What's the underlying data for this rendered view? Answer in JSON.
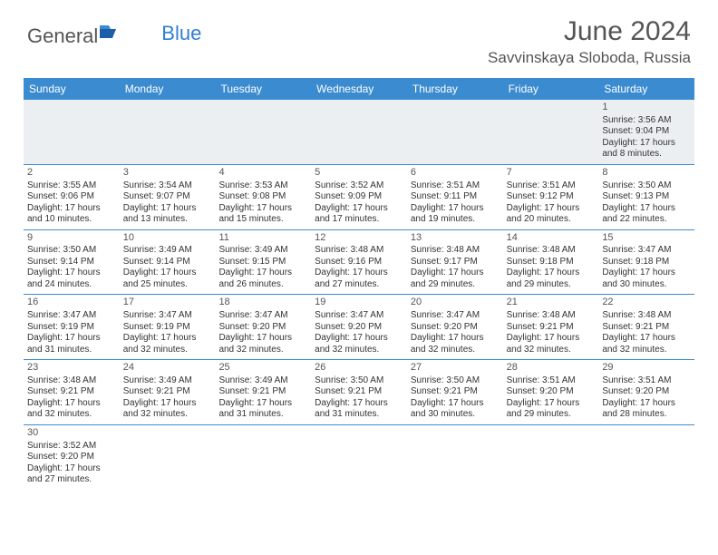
{
  "logo": {
    "part1": "General",
    "part2": "Blue"
  },
  "title": "June 2024",
  "location": "Savvinskaya Sloboda, Russia",
  "colors": {
    "header_bg": "#3b8bd0",
    "header_text": "#ffffff",
    "border": "#3b8bd0",
    "first_week_bg": "#eceff1",
    "text": "#333333",
    "title": "#555555",
    "logo_gray": "#555555",
    "logo_blue": "#2f7fd0"
  },
  "day_headers": [
    "Sunday",
    "Monday",
    "Tuesday",
    "Wednesday",
    "Thursday",
    "Friday",
    "Saturday"
  ],
  "weeks": [
    [
      null,
      null,
      null,
      null,
      null,
      null,
      {
        "n": "1",
        "sr": "3:56 AM",
        "ss": "9:04 PM",
        "dl": "17 hours and 8 minutes."
      }
    ],
    [
      {
        "n": "2",
        "sr": "3:55 AM",
        "ss": "9:06 PM",
        "dl": "17 hours and 10 minutes."
      },
      {
        "n": "3",
        "sr": "3:54 AM",
        "ss": "9:07 PM",
        "dl": "17 hours and 13 minutes."
      },
      {
        "n": "4",
        "sr": "3:53 AM",
        "ss": "9:08 PM",
        "dl": "17 hours and 15 minutes."
      },
      {
        "n": "5",
        "sr": "3:52 AM",
        "ss": "9:09 PM",
        "dl": "17 hours and 17 minutes."
      },
      {
        "n": "6",
        "sr": "3:51 AM",
        "ss": "9:11 PM",
        "dl": "17 hours and 19 minutes."
      },
      {
        "n": "7",
        "sr": "3:51 AM",
        "ss": "9:12 PM",
        "dl": "17 hours and 20 minutes."
      },
      {
        "n": "8",
        "sr": "3:50 AM",
        "ss": "9:13 PM",
        "dl": "17 hours and 22 minutes."
      }
    ],
    [
      {
        "n": "9",
        "sr": "3:50 AM",
        "ss": "9:14 PM",
        "dl": "17 hours and 24 minutes."
      },
      {
        "n": "10",
        "sr": "3:49 AM",
        "ss": "9:14 PM",
        "dl": "17 hours and 25 minutes."
      },
      {
        "n": "11",
        "sr": "3:49 AM",
        "ss": "9:15 PM",
        "dl": "17 hours and 26 minutes."
      },
      {
        "n": "12",
        "sr": "3:48 AM",
        "ss": "9:16 PM",
        "dl": "17 hours and 27 minutes."
      },
      {
        "n": "13",
        "sr": "3:48 AM",
        "ss": "9:17 PM",
        "dl": "17 hours and 29 minutes."
      },
      {
        "n": "14",
        "sr": "3:48 AM",
        "ss": "9:18 PM",
        "dl": "17 hours and 29 minutes."
      },
      {
        "n": "15",
        "sr": "3:47 AM",
        "ss": "9:18 PM",
        "dl": "17 hours and 30 minutes."
      }
    ],
    [
      {
        "n": "16",
        "sr": "3:47 AM",
        "ss": "9:19 PM",
        "dl": "17 hours and 31 minutes."
      },
      {
        "n": "17",
        "sr": "3:47 AM",
        "ss": "9:19 PM",
        "dl": "17 hours and 32 minutes."
      },
      {
        "n": "18",
        "sr": "3:47 AM",
        "ss": "9:20 PM",
        "dl": "17 hours and 32 minutes."
      },
      {
        "n": "19",
        "sr": "3:47 AM",
        "ss": "9:20 PM",
        "dl": "17 hours and 32 minutes."
      },
      {
        "n": "20",
        "sr": "3:47 AM",
        "ss": "9:20 PM",
        "dl": "17 hours and 32 minutes."
      },
      {
        "n": "21",
        "sr": "3:48 AM",
        "ss": "9:21 PM",
        "dl": "17 hours and 32 minutes."
      },
      {
        "n": "22",
        "sr": "3:48 AM",
        "ss": "9:21 PM",
        "dl": "17 hours and 32 minutes."
      }
    ],
    [
      {
        "n": "23",
        "sr": "3:48 AM",
        "ss": "9:21 PM",
        "dl": "17 hours and 32 minutes."
      },
      {
        "n": "24",
        "sr": "3:49 AM",
        "ss": "9:21 PM",
        "dl": "17 hours and 32 minutes."
      },
      {
        "n": "25",
        "sr": "3:49 AM",
        "ss": "9:21 PM",
        "dl": "17 hours and 31 minutes."
      },
      {
        "n": "26",
        "sr": "3:50 AM",
        "ss": "9:21 PM",
        "dl": "17 hours and 31 minutes."
      },
      {
        "n": "27",
        "sr": "3:50 AM",
        "ss": "9:21 PM",
        "dl": "17 hours and 30 minutes."
      },
      {
        "n": "28",
        "sr": "3:51 AM",
        "ss": "9:20 PM",
        "dl": "17 hours and 29 minutes."
      },
      {
        "n": "29",
        "sr": "3:51 AM",
        "ss": "9:20 PM",
        "dl": "17 hours and 28 minutes."
      }
    ],
    [
      {
        "n": "30",
        "sr": "3:52 AM",
        "ss": "9:20 PM",
        "dl": "17 hours and 27 minutes."
      },
      null,
      null,
      null,
      null,
      null,
      null
    ]
  ]
}
